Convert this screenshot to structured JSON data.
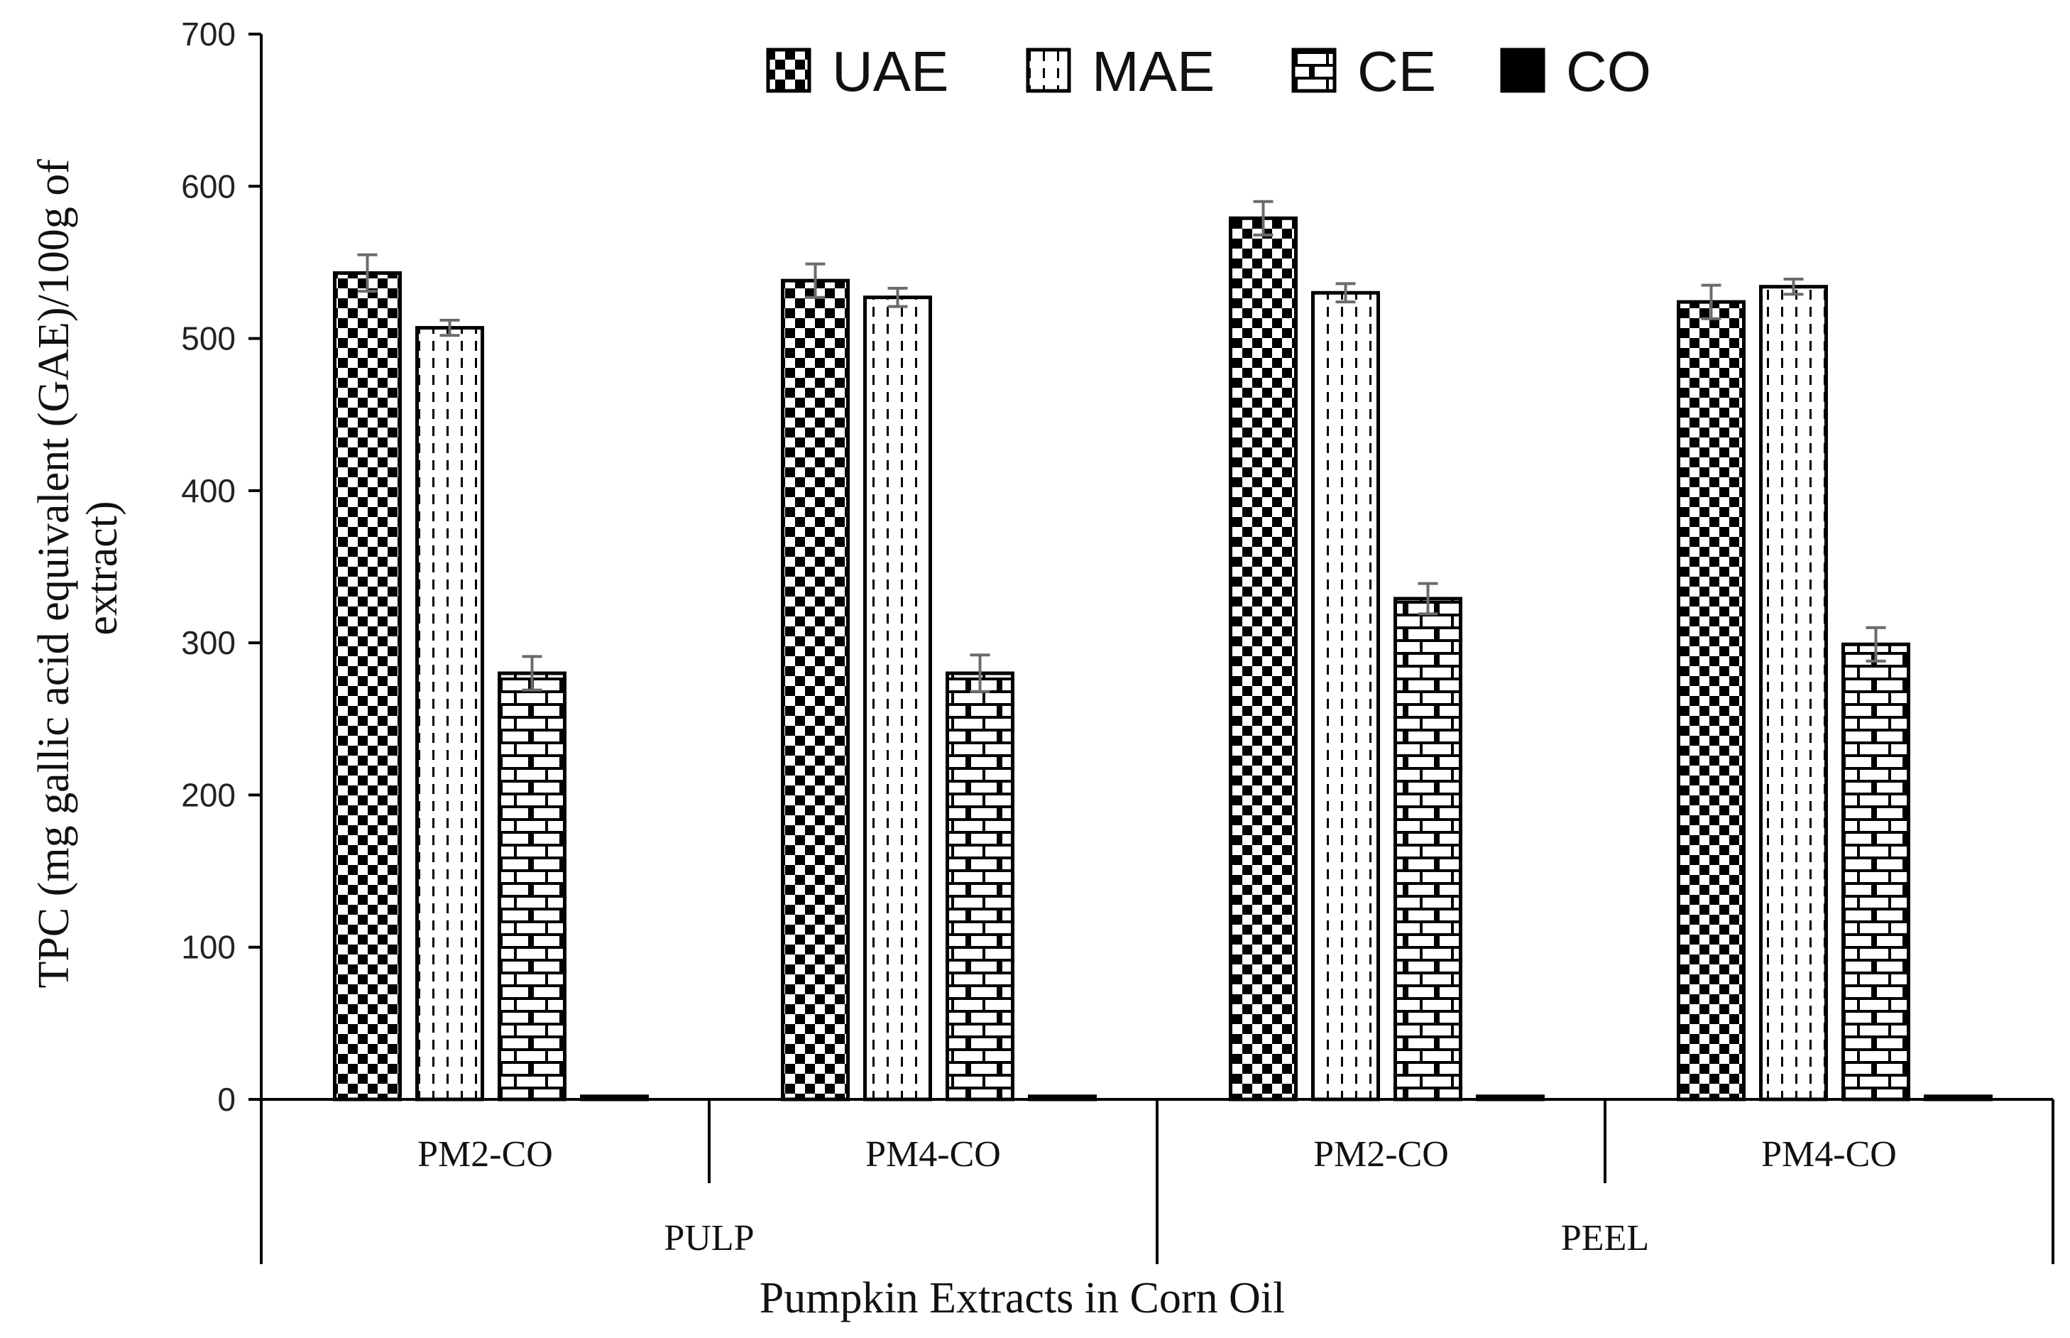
{
  "chart_data": {
    "type": "bar",
    "title": "",
    "xlabel": "Pumpkin Extracts in Corn Oil",
    "ylabel_lines": [
      "TPC (mg gallic acid equivalent (GAE)/100g of",
      "extract)"
    ],
    "ylim": [
      0,
      700
    ],
    "yticks": [
      0,
      100,
      200,
      300,
      400,
      500,
      600,
      700
    ],
    "categories": [
      "PM2-CO",
      "PM4-CO",
      "PM2-CO",
      "PM4-CO"
    ],
    "groups": [
      {
        "label": "PULP",
        "categories": [
          0,
          1
        ]
      },
      {
        "label": "PEEL",
        "categories": [
          2,
          3
        ]
      }
    ],
    "legend_position": "top",
    "series": [
      {
        "name": "UAE",
        "pattern": "checker",
        "values": [
          543,
          538,
          579,
          524
        ],
        "errors": [
          12,
          11,
          11,
          11
        ]
      },
      {
        "name": "MAE",
        "pattern": "dashed-vertical",
        "values": [
          507,
          527,
          530,
          534
        ],
        "errors": [
          5,
          6,
          6,
          5
        ]
      },
      {
        "name": "CE",
        "pattern": "brick",
        "values": [
          280,
          280,
          329,
          299
        ],
        "errors": [
          11,
          12,
          10,
          11
        ]
      },
      {
        "name": "CO",
        "pattern": "dark",
        "values": [
          2,
          2,
          2,
          2
        ],
        "errors": [
          0,
          0,
          0,
          0
        ]
      }
    ]
  }
}
